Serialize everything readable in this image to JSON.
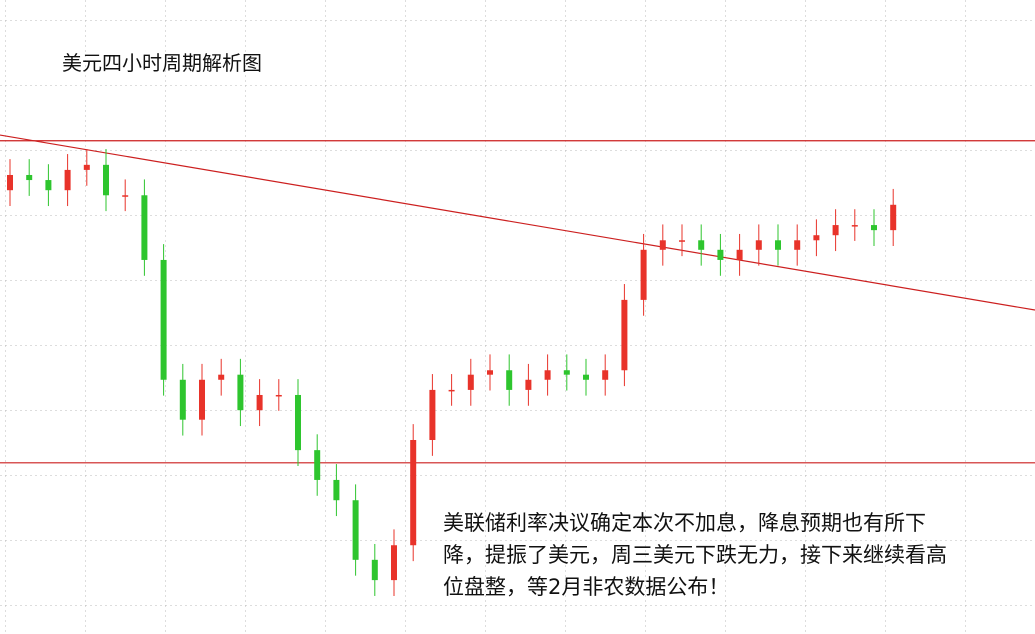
{
  "chart_data": {
    "type": "candlestick",
    "title": "美元四小时周期解析图",
    "annotation": [
      "美联储利率决议确定本次不加息，降息预期也有所下",
      "降，提振了美元，周三美元下跌无力，接下来继续看高",
      "位盘整，等2月非农数据公布！"
    ],
    "ylim": [
      0,
      100
    ],
    "up_color": "#e8332a",
    "down_color": "#2ec52e",
    "line_color": "#cc1f1f",
    "levels": [
      77.8,
      27.0
    ],
    "trendline": [
      78.7,
      51.1
    ],
    "open": [
      70.0,
      72.4,
      71.6,
      70.0,
      73.2,
      74.0,
      69.2,
      69.2,
      59.0,
      40.1,
      33.8,
      40.1,
      40.9,
      35.3,
      37.7,
      37.7,
      29.0,
      24.3,
      21.1,
      11.7,
      8.5,
      14.0,
      30.6,
      38.5,
      38.5,
      40.9,
      41.6,
      38.5,
      40.1,
      41.6,
      40.9,
      40.1,
      41.6,
      52.7,
      60.6,
      62.1,
      62.1,
      60.6,
      59.0,
      60.6,
      62.1,
      60.6,
      62.1,
      62.9,
      64.5,
      64.5,
      63.7
    ],
    "high": [
      74.9,
      74.9,
      74.1,
      75.7,
      76.5,
      76.5,
      71.7,
      71.7,
      61.5,
      42.6,
      42.6,
      43.4,
      43.4,
      40.2,
      40.2,
      40.2,
      31.5,
      26.8,
      23.6,
      14.2,
      16.5,
      33.1,
      41.0,
      41.0,
      43.4,
      44.1,
      44.1,
      42.6,
      44.1,
      44.1,
      43.4,
      44.1,
      55.2,
      63.1,
      64.6,
      64.6,
      64.6,
      63.1,
      63.1,
      64.6,
      64.6,
      64.6,
      65.4,
      67.0,
      67.0,
      67.0,
      70.2
    ],
    "low": [
      67.5,
      69.1,
      67.5,
      67.5,
      70.7,
      66.7,
      66.7,
      56.5,
      37.6,
      31.3,
      31.3,
      37.6,
      32.8,
      32.8,
      35.2,
      26.5,
      21.8,
      18.6,
      9.2,
      6.0,
      6.0,
      11.5,
      28.1,
      36.0,
      36.0,
      38.4,
      36.0,
      36.0,
      37.6,
      38.4,
      37.6,
      37.6,
      39.1,
      50.2,
      58.1,
      59.6,
      58.1,
      56.5,
      56.5,
      58.1,
      58.1,
      58.1,
      59.6,
      60.4,
      62.0,
      61.2,
      61.2
    ],
    "close": [
      72.4,
      71.6,
      70.0,
      73.2,
      74.0,
      69.2,
      69.2,
      59.0,
      40.1,
      33.8,
      40.1,
      40.9,
      35.3,
      37.7,
      37.7,
      29.0,
      24.3,
      21.1,
      11.7,
      8.5,
      14.0,
      30.6,
      38.5,
      38.5,
      40.9,
      41.6,
      38.5,
      40.1,
      41.6,
      40.9,
      40.1,
      41.6,
      52.7,
      60.6,
      62.1,
      62.1,
      60.6,
      59.0,
      60.6,
      62.1,
      60.6,
      62.1,
      62.9,
      64.5,
      64.5,
      63.7,
      67.7
    ]
  }
}
